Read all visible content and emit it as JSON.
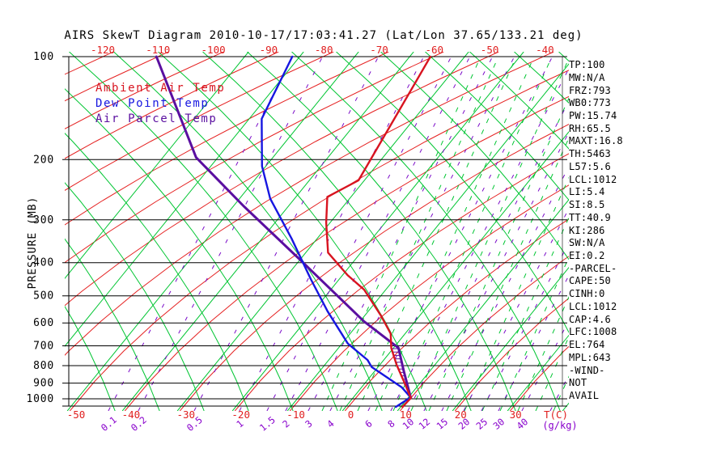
{
  "title": "AIRS SkewT Diagram 2010-10-17/17:03:41.27 (Lat/Lon 37.65/133.21 deg)",
  "legend": {
    "ambient": "Ambient Air Temp",
    "dewpoint": "Dew Point Temp",
    "parcel": "Air Parcel Temp"
  },
  "axes": {
    "y_label": "PRESSURE (MB)",
    "pressure_levels": [
      100,
      200,
      300,
      400,
      500,
      600,
      700,
      800,
      900,
      1000
    ],
    "top_temp_labels": [
      "-120",
      "-110",
      "-100",
      "-90",
      "-80",
      "-70",
      "-60",
      "-50",
      "-40"
    ],
    "bottom_temp_labels": [
      "-50",
      "-40",
      "-30",
      "-20",
      "-10",
      "0",
      "10",
      "20",
      "30"
    ],
    "bottom_temp_unit": "T(C)",
    "mixing_ratio_labels": [
      "0.1",
      "0.2",
      "0.5",
      "1",
      "1.5",
      "2",
      "3",
      "4",
      "6",
      "8",
      "10",
      "12",
      "15",
      "20",
      "25",
      "30",
      "40"
    ],
    "mixing_ratio_unit": "(g/kg)"
  },
  "stats": [
    "TP:100",
    "MW:N/A",
    "FRZ:793",
    "WB0:773",
    "PW:15.74",
    "RH:65.5",
    "MAXT:16.8",
    "TH:5463",
    "L57:5.6",
    "LCL:1012",
    "LI:5.4",
    "SI:8.5",
    "TT:40.9",
    "KI:286",
    "SW:N/A",
    "EI:0.2",
    "-PARCEL-",
    "CAPE:50",
    "CINH:0",
    "LCL:1012",
    "CAP:4.6",
    "LFC:1008",
    "EL:764",
    "MPL:643",
    "-WIND-",
    "NOT",
    "AVAIL"
  ],
  "colors": {
    "ambient_curve": "#d81420",
    "dewpoint_curve": "#1616e0",
    "parcel_curve": "#5a0fa0",
    "isotherm": "#e52121",
    "adiabat_green": "#00c532",
    "moist_dashed": "#00c532",
    "mixing_purple": "#7a0ac8",
    "axis_black": "#000000",
    "label_red": "#e02020",
    "label_purple": "#8800cc"
  },
  "chart_data": {
    "type": "skewt-log-p",
    "title": "AIRS SkewT Diagram 2010-10-17/17:03:41.27 (Lat/Lon 37.65/133.21 deg)",
    "ylabel": "PRESSURE (MB)",
    "y_scale": "log-pressure",
    "y_range_mb": [
      100,
      1050
    ],
    "x_range_bottom_c": [
      -50,
      30
    ],
    "x_range_top_c": [
      -120,
      -40
    ],
    "grid": [
      "isotherms-red-solid",
      "dry-adiabats-green-solid",
      "moist-adiabats-green-dashed",
      "mixing-ratio-purple-dashed",
      "pressure-black-horizontal"
    ],
    "legend_position": "top-left-inside",
    "series": [
      {
        "name": "Ambient Air Temp",
        "units": [
          "deg C",
          "mb"
        ],
        "points_T_p": [
          [
            -61.2,
            100
          ],
          [
            -54.3,
            152
          ],
          [
            -47.5,
            230
          ],
          [
            -49.6,
            257
          ],
          [
            -44.3,
            305
          ],
          [
            -37.4,
            374
          ],
          [
            -29.0,
            435
          ],
          [
            -22.8,
            480
          ],
          [
            -14.2,
            571
          ],
          [
            -8.5,
            645
          ],
          [
            -5.3,
            710
          ],
          [
            -0.7,
            795
          ],
          [
            5.0,
            905
          ],
          [
            9.1,
            995
          ],
          [
            9.5,
            1056
          ]
        ]
      },
      {
        "name": "Dew Point Temp",
        "units": [
          "deg C",
          "mb"
        ],
        "points_T_p": [
          [
            -86.3,
            100
          ],
          [
            -78.4,
            152
          ],
          [
            -68.1,
            209
          ],
          [
            -59.6,
            260
          ],
          [
            -47.1,
            340
          ],
          [
            -34.7,
            448
          ],
          [
            -24.8,
            555
          ],
          [
            -14.1,
            690
          ],
          [
            -7.0,
            770
          ],
          [
            -4.7,
            808
          ],
          [
            5.1,
            925
          ],
          [
            8.9,
            990
          ],
          [
            8.3,
            1056
          ]
        ]
      },
      {
        "name": "Air Parcel Temp",
        "units": [
          "deg C",
          "mb"
        ],
        "points_T_p": [
          [
            -111.0,
            100
          ],
          [
            -82.0,
            197
          ],
          [
            -62.9,
            273
          ],
          [
            -41.3,
            390
          ],
          [
            -16.0,
            594
          ],
          [
            -4.0,
            710
          ],
          [
            2.0,
            830
          ],
          [
            9.1,
            995
          ]
        ]
      }
    ],
    "indices": {
      "TP": "100",
      "MW": "N/A",
      "FRZ": "793",
      "WB0": "773",
      "PW": "15.74",
      "RH": "65.5",
      "MAXT": "16.8",
      "TH": "5463",
      "L57": "5.6",
      "LCL": "1012",
      "LI": "5.4",
      "SI": "8.5",
      "TT": "40.9",
      "KI": "286",
      "SW": "N/A",
      "EI": "0.2",
      "CAPE": "50",
      "CINH": "0",
      "LCL_parcel": "1012",
      "CAP": "4.6",
      "LFC": "1008",
      "EL": "764",
      "MPL": "643",
      "WIND": "NOT AVAIL"
    }
  }
}
